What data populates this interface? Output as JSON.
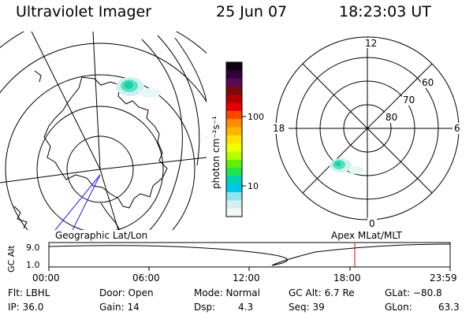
{
  "header": {
    "title": "Ultraviolet Imager",
    "date": "25 Jun 07",
    "time": "18:23:03 UT"
  },
  "colorbar": {
    "unit_label": "photon cm⁻²s⁻¹",
    "ticks": [
      "100",
      "10"
    ],
    "colors": [
      "#140014",
      "#32003c",
      "#5a0a50",
      "#7d0a0a",
      "#b40000",
      "#e60000",
      "#ff4600",
      "#ff8c00",
      "#ffb400",
      "#ffe100",
      "#f0ff00",
      "#b4ff00",
      "#64f000",
      "#1ee650",
      "#00d2b4",
      "#00c8e6",
      "#8ce6f0",
      "#d2f0f0",
      "#f0f8f8"
    ]
  },
  "right_polar": {
    "mlt_labels": [
      "12",
      "18",
      "6",
      "0"
    ],
    "mlat_labels": [
      "60",
      "70",
      "80"
    ]
  },
  "bottom_panel": {
    "left_title": "Geographic Lat/Lon",
    "right_title": "Apex MLat/MLT",
    "y_axis_label": "GC Alt",
    "y_ticks": [
      "9.0",
      "1.0"
    ],
    "x_ticks": [
      "00:00",
      "06:00",
      "12:00",
      "18:00",
      "23:59"
    ]
  },
  "info": {
    "filter": "Flt: LBHL",
    "ip": "IP: 36.0",
    "door": "Door: Open",
    "gain": "Gain: 14",
    "mode": "Mode: Normal",
    "dsp": "Dsp:",
    "dsp_val": "4.3",
    "gc_alt": "GC Alt: 6.7 Re",
    "seq": "Seq: 39",
    "glat": "GLat: −80.8",
    "glon_label": "GLon:",
    "glon_val": "63.3"
  }
}
